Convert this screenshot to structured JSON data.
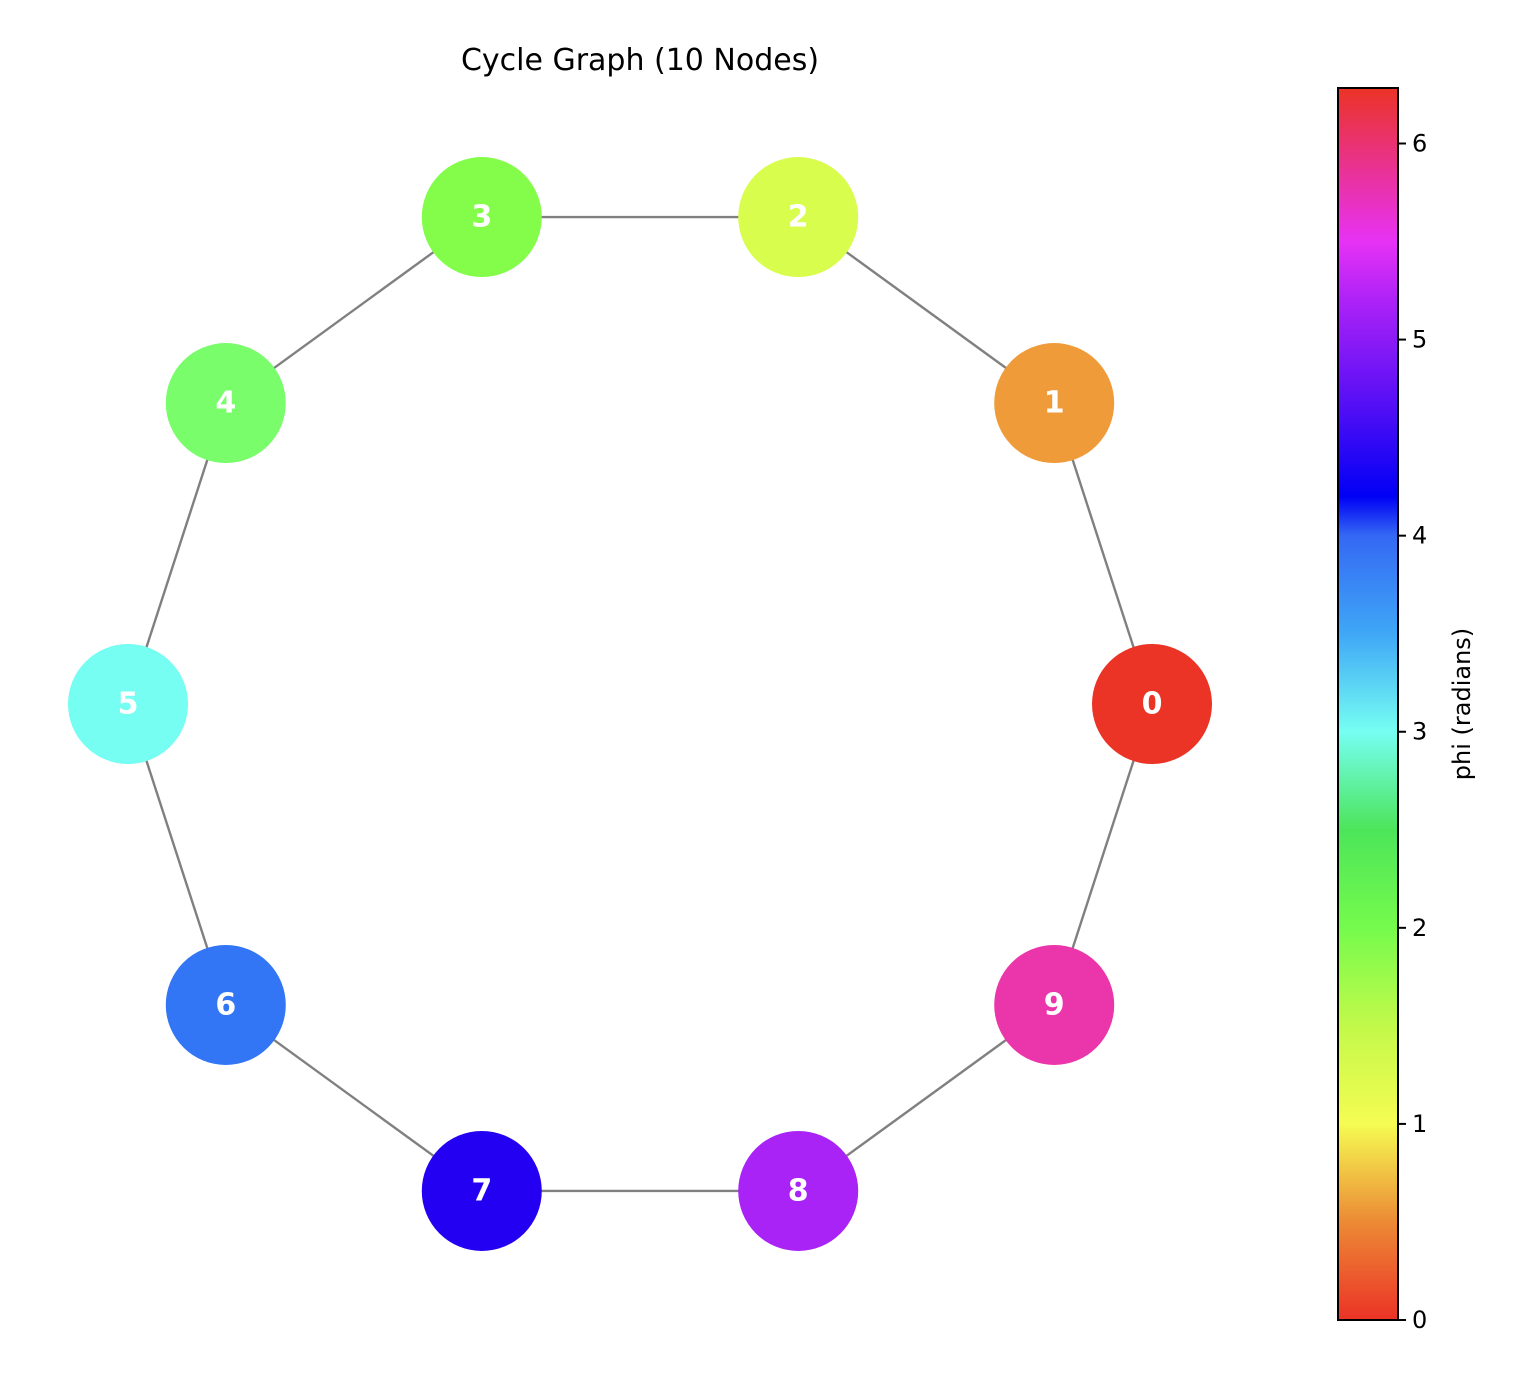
{
  "title": "Cycle Graph (10 Nodes)",
  "edge_color": "#808080",
  "node_label_color": "#ffffff",
  "nodes": [
    {
      "id": "0",
      "label": "0",
      "color": "#eb3326"
    },
    {
      "id": "1",
      "label": "1",
      "color": "#f09b39"
    },
    {
      "id": "2",
      "label": "2",
      "color": "#d8fd4d"
    },
    {
      "id": "3",
      "label": "3",
      "color": "#83fd4a"
    },
    {
      "id": "4",
      "label": "4",
      "color": "#79fd6b"
    },
    {
      "id": "5",
      "label": "5",
      "color": "#76fef2"
    },
    {
      "id": "6",
      "label": "6",
      "color": "#3276f5"
    },
    {
      "id": "7",
      "label": "7",
      "color": "#2400f3"
    },
    {
      "id": "8",
      "label": "8",
      "color": "#aa23f6"
    },
    {
      "id": "9",
      "label": "9",
      "color": "#eb35aa"
    }
  ],
  "edges": [
    [
      "0",
      "1"
    ],
    [
      "1",
      "2"
    ],
    [
      "2",
      "3"
    ],
    [
      "3",
      "4"
    ],
    [
      "4",
      "5"
    ],
    [
      "5",
      "6"
    ],
    [
      "6",
      "7"
    ],
    [
      "7",
      "8"
    ],
    [
      "8",
      "9"
    ],
    [
      "9",
      "0"
    ]
  ],
  "colorbar": {
    "label": "phi (radians)",
    "range": [
      0,
      6.283
    ],
    "ticks": [
      {
        "value": 0,
        "label": "0"
      },
      {
        "value": 1,
        "label": "1"
      },
      {
        "value": 2,
        "label": "2"
      },
      {
        "value": 3,
        "label": "3"
      },
      {
        "value": 4,
        "label": "4"
      },
      {
        "value": 5,
        "label": "5"
      },
      {
        "value": 6,
        "label": "6"
      }
    ],
    "stops": [
      {
        "value": 0.0,
        "color": "#eb3326"
      },
      {
        "value": 0.5,
        "color": "#ec8a35"
      },
      {
        "value": 1.0,
        "color": "#f5fc52"
      },
      {
        "value": 1.5,
        "color": "#c2f94a"
      },
      {
        "value": 2.0,
        "color": "#75fb4c"
      },
      {
        "value": 2.5,
        "color": "#4ce55a"
      },
      {
        "value": 3.0,
        "color": "#76fef2"
      },
      {
        "value": 3.5,
        "color": "#3fa7f6"
      },
      {
        "value": 4.0,
        "color": "#3468f4"
      },
      {
        "value": 4.2,
        "color": "#0000f5"
      },
      {
        "value": 4.7,
        "color": "#5a10f5"
      },
      {
        "value": 5.2,
        "color": "#ad22f7"
      },
      {
        "value": 5.5,
        "color": "#e732f5"
      },
      {
        "value": 6.283,
        "color": "#eb3326"
      }
    ]
  }
}
